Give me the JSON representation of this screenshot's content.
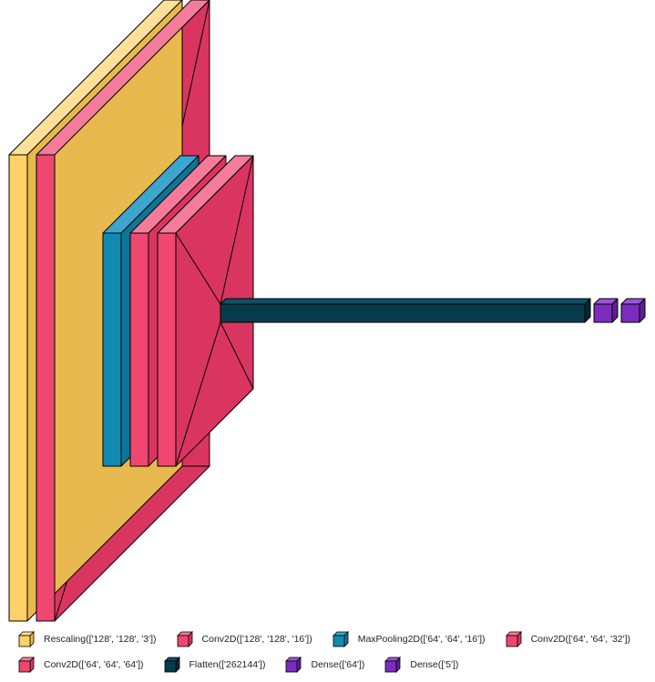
{
  "colors": {
    "rescaling": "#FFD166",
    "conv_a": "#EF476F",
    "conv_b": "#DA3560",
    "pool": "#118AB2",
    "flatten": "#073B4C",
    "dense": "#7B2CBF"
  },
  "legend": {
    "items": [
      {
        "label": "Rescaling(['128', '128', '3'])",
        "color": "#FFD166"
      },
      {
        "label": "Conv2D(['128', '128', '16'])",
        "color": "#EF476F"
      },
      {
        "label": "MaxPooling2D(['64', '64', '16'])",
        "color": "#118AB2"
      },
      {
        "label": "Conv2D(['64', '64', '32'])",
        "color": "#EF476F"
      },
      {
        "label": "Conv2D(['64', '64', '64'])",
        "color": "#EF476F"
      },
      {
        "label": "Flatten(['262144'])",
        "color": "#073B4C"
      },
      {
        "label": "Dense(['64'])",
        "color": "#7B2CBF"
      },
      {
        "label": "Dense(['5'])",
        "color": "#7B2CBF"
      }
    ]
  }
}
